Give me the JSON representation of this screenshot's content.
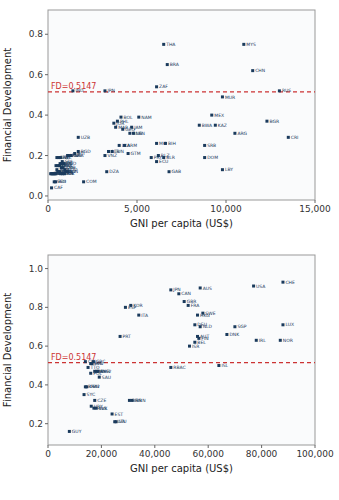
{
  "chart_data": [
    {
      "type": "scatter",
      "xlabel": "GNI per capita (US$)",
      "ylabel": "Financial Development",
      "xlim": [
        0,
        15000
      ],
      "ylim": [
        -0.02,
        0.92
      ],
      "xticks": [
        0,
        {
          "value": 5000,
          "label": "5,000"
        },
        {
          "value": 10000,
          "label": "10,000"
        },
        {
          "value": 15000,
          "label": "15,000"
        }
      ],
      "yticks": [
        {
          "value": 0.0,
          "label": "0.0"
        },
        0.2,
        0.4,
        0.6,
        0.8
      ],
      "grid": false,
      "color": "#1a3a5c",
      "marker": "square",
      "x": [
        6500,
        11000,
        6700,
        11500,
        1400,
        3200,
        6100,
        9800,
        13000,
        9200,
        12300,
        4100,
        3900,
        3700,
        3800,
        4700,
        4200,
        5100,
        8500,
        9400,
        4600,
        4800,
        10500,
        13500,
        1700,
        4000,
        4300,
        3600,
        4500,
        6100,
        6600,
        8800,
        3400,
        3200,
        5800,
        6200,
        6500,
        8800,
        9800,
        6100,
        6800,
        3300,
        1700,
        800,
        900,
        680,
        760,
        500,
        650,
        600,
        550,
        400,
        450,
        350,
        300,
        250,
        200,
        150,
        710,
        820,
        920,
        350,
        430,
        2000,
        200,
        1100,
        1200,
        1300,
        1000,
        1100,
        600,
        700,
        500,
        450,
        550,
        650,
        750,
        850,
        950,
        1500
      ],
      "values": [
        0.75,
        0.75,
        0.65,
        0.62,
        0.52,
        0.52,
        0.54,
        0.49,
        0.52,
        0.4,
        0.37,
        0.39,
        0.37,
        0.36,
        0.34,
        0.34,
        0.33,
        0.39,
        0.35,
        0.35,
        0.31,
        0.31,
        0.31,
        0.29,
        0.29,
        0.25,
        0.25,
        0.22,
        0.21,
        0.26,
        0.26,
        0.25,
        0.22,
        0.2,
        0.19,
        0.2,
        0.19,
        0.19,
        0.13,
        0.17,
        0.12,
        0.12,
        0.22,
        0.17,
        0.16,
        0.16,
        0.16,
        0.13,
        0.12,
        0.12,
        0.12,
        0.11,
        0.11,
        0.11,
        0.11,
        0.11,
        0.11,
        0.11,
        0.11,
        0.11,
        0.11,
        0.07,
        0.07,
        0.07,
        0.04,
        0.2,
        0.2,
        0.2,
        0.12,
        0.12,
        0.19,
        0.19,
        0.19,
        0.15,
        0.15,
        0.15,
        0.14,
        0.14,
        0.13,
        0.21
      ],
      "labels": [
        "THA",
        "MYS",
        "BRA",
        "CHN",
        "IND",
        "JPN",
        "ZAF",
        "MUR",
        "RUS",
        "MEX",
        "BGR",
        "BOL",
        "PHL",
        "JOR",
        "MAR",
        "JAM",
        "GEO",
        "NAM",
        "BWA",
        "KAZ",
        "BNG",
        "LBN",
        "ARG",
        "CRI",
        "UZB",
        "LKA",
        "ARM",
        "TUN",
        "GTM",
        "MK",
        "BIH",
        "SRB",
        "ALB",
        "VNZ",
        "PRY",
        "BLZ",
        "BLR",
        "DOM",
        "LBY",
        "ECU",
        "GAB",
        "DZA",
        "BGD",
        "SDI",
        "TGO",
        "BEN",
        "MRT",
        "RWA",
        "NGA",
        "MDG",
        "GMB",
        "MLI",
        "SLE",
        "TZA",
        "MWI",
        "UGA",
        "ETH",
        "MOZ",
        "CMR",
        "GIN",
        "KIR",
        "SSO",
        "BDI",
        "COM",
        "CAF",
        "KGZ",
        "PNG",
        "GHA",
        "DIV",
        "NIN",
        "LSO",
        "NPL",
        "SEN",
        "BFA",
        "NER",
        "GNB",
        "TCD",
        "ZMB",
        "COD",
        "HTI"
      ],
      "lines": [
        {
          "y": 0.5147,
          "label": "FD=0.5147",
          "color": "#cc3333",
          "line_style": "dashed"
        }
      ]
    },
    {
      "type": "scatter",
      "xlabel": "GNI per capita (US$)",
      "ylabel": "Financial Development",
      "xlim": [
        0,
        100000
      ],
      "ylim": [
        0.09,
        1.07
      ],
      "xticks": [
        0,
        {
          "value": 20000,
          "label": "20,000"
        },
        {
          "value": 40000,
          "label": "40,000"
        },
        {
          "value": 60000,
          "label": "60,000"
        },
        {
          "value": 80000,
          "label": "80,000"
        },
        {
          "value": 100000,
          "label": "100,000"
        }
      ],
      "yticks": [
        0.2,
        0.4,
        0.6,
        0.8,
        {
          "value": 1.0,
          "label": "1.0"
        }
      ],
      "grid": false,
      "color": "#1a3a5c",
      "marker": "square",
      "x": [
        88000,
        77000,
        57000,
        46000,
        49000,
        51000,
        52500,
        29000,
        31000,
        34000,
        56000,
        58000,
        55000,
        57000,
        70000,
        88000,
        67000,
        78000,
        87000,
        27000,
        56000,
        56500,
        55000,
        53000,
        46000,
        64000,
        14000,
        16500,
        17000,
        16000,
        15000,
        17500,
        18200,
        18700,
        19200,
        16000,
        14000,
        14500,
        13500,
        17500,
        31500,
        30500,
        16200,
        17200,
        18000,
        24000,
        25000,
        25500,
        8000
      ],
      "values": [
        0.93,
        0.91,
        0.9,
        0.89,
        0.87,
        0.83,
        0.81,
        0.8,
        0.81,
        0.76,
        0.76,
        0.77,
        0.71,
        0.7,
        0.7,
        0.71,
        0.66,
        0.63,
        0.63,
        0.65,
        0.65,
        0.64,
        0.62,
        0.6,
        0.49,
        0.5,
        0.52,
        0.51,
        0.52,
        0.51,
        0.49,
        0.47,
        0.47,
        0.47,
        0.44,
        0.46,
        0.39,
        0.39,
        0.35,
        0.32,
        0.32,
        0.32,
        0.29,
        0.28,
        0.28,
        0.25,
        0.21,
        0.21,
        0.16
      ],
      "labels": [
        "CHE",
        "USA",
        "AUS",
        "JPN",
        "CAN",
        "GBR",
        "FRA",
        "ESP",
        "KOR",
        "ITA",
        "HKG",
        "SWE",
        "DEU",
        "NLD",
        "SGP",
        "LUX",
        "DNK",
        "IRL",
        "NOR",
        "PRT",
        "AUT",
        "FIN",
        "BEL",
        "ISR",
        "RBAC",
        "ISL",
        "CHL",
        "HRV",
        "GRC",
        "SRS",
        "TTO",
        "PAN",
        "MYS2",
        "BHR",
        "SAU",
        "POL",
        "BRA2",
        "OBN",
        "SYC",
        "CZE",
        "IBRN",
        "BRN",
        "URY",
        "HNG",
        "SVK",
        "EST",
        "LVA",
        "LTU",
        "GUY"
      ],
      "lines": [
        {
          "y": 0.5147,
          "label": "FD=0.5147",
          "color": "#cc3333",
          "line_style": "dashed"
        }
      ]
    }
  ]
}
